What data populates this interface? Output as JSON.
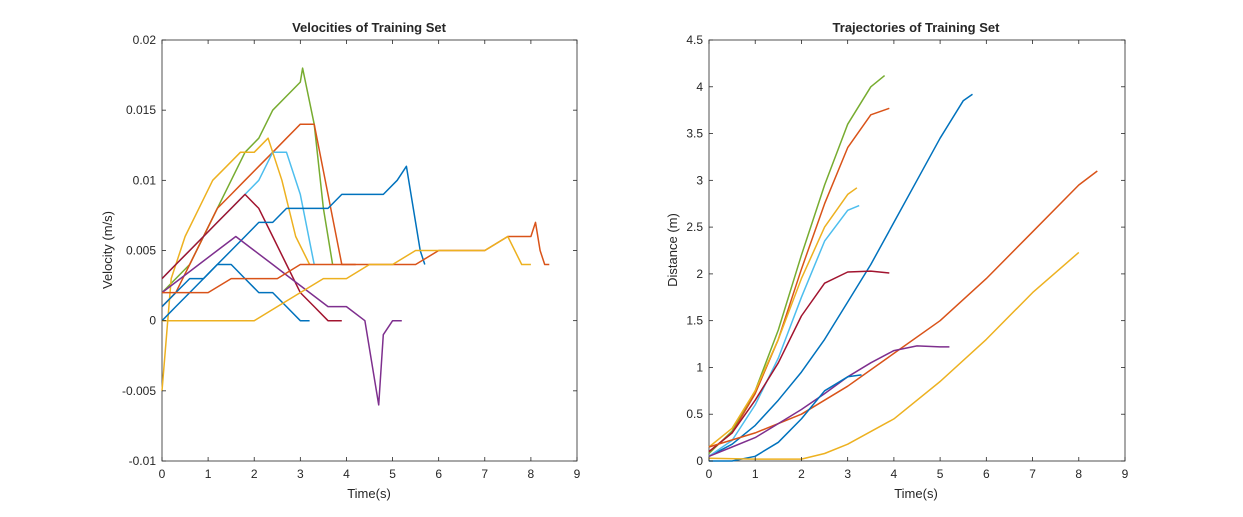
{
  "chart_data": [
    {
      "type": "line",
      "title": "Velocities of Training Set",
      "xlabel": "Time(s)",
      "ylabel": "Velocity (m/s)",
      "xlim": [
        0,
        9
      ],
      "ylim": [
        -0.01,
        0.02
      ],
      "xticks": [
        "0",
        "1",
        "2",
        "3",
        "4",
        "5",
        "6",
        "7",
        "8",
        "9"
      ],
      "yticks": [
        "-0.01",
        "-0.005",
        "0",
        "0.005",
        "0.01",
        "0.015",
        "0.02"
      ],
      "grid": false,
      "series": [
        {
          "color": "#77AC30",
          "x": [
            0,
            0.3,
            0.6,
            0.9,
            1.2,
            1.5,
            1.8,
            2.1,
            2.4,
            2.7,
            3.0,
            3.05,
            3.3,
            3.5,
            3.7
          ],
          "y": [
            0.002,
            0.003,
            0.004,
            0.006,
            0.008,
            0.01,
            0.012,
            0.013,
            0.015,
            0.016,
            0.017,
            0.018,
            0.014,
            0.008,
            0.004
          ]
        },
        {
          "color": "#D95319",
          "x": [
            0,
            0.3,
            0.6,
            0.9,
            1.2,
            1.5,
            1.8,
            2.1,
            2.4,
            2.7,
            3.0,
            3.3,
            3.6,
            3.9,
            4.2
          ],
          "y": [
            0.001,
            0.002,
            0.004,
            0.006,
            0.008,
            0.009,
            0.01,
            0.011,
            0.012,
            0.013,
            0.014,
            0.014,
            0.009,
            0.004,
            0.004
          ]
        },
        {
          "color": "#4DBEEE",
          "x": [
            0,
            0.3,
            0.6,
            0.9,
            1.2,
            1.5,
            1.8,
            2.1,
            2.4,
            2.7,
            3.0,
            3.3
          ],
          "y": [
            0.003,
            0.004,
            0.005,
            0.006,
            0.007,
            0.008,
            0.009,
            0.01,
            0.012,
            0.012,
            0.009,
            0.004
          ]
        },
        {
          "color": "#EDB120",
          "x": [
            0,
            0.2,
            0.5,
            0.8,
            1.1,
            1.4,
            1.7,
            2.0,
            2.3,
            2.6,
            2.9,
            3.2
          ],
          "y": [
            -0.005,
            0.003,
            0.006,
            0.008,
            0.01,
            0.011,
            0.012,
            0.012,
            0.013,
            0.01,
            0.006,
            0.004
          ]
        },
        {
          "color": "#A2142F",
          "x": [
            0,
            0.3,
            0.6,
            0.9,
            1.2,
            1.5,
            1.8,
            2.1,
            2.4,
            2.7,
            3.0,
            3.3,
            3.6,
            3.9
          ],
          "y": [
            0.003,
            0.004,
            0.005,
            0.006,
            0.007,
            0.008,
            0.009,
            0.008,
            0.006,
            0.004,
            0.002,
            0.001,
            0.0,
            0.0
          ]
        },
        {
          "color": "#0072BD",
          "x": [
            0,
            0.3,
            0.6,
            0.9,
            1.2,
            1.5,
            1.8,
            2.1,
            2.4,
            2.7,
            3.0,
            3.3,
            3.6,
            3.9,
            4.2,
            4.5,
            4.8,
            5.1,
            5.3,
            5.4,
            5.5,
            5.6,
            5.7
          ],
          "y": [
            0.0,
            0.001,
            0.002,
            0.003,
            0.004,
            0.005,
            0.006,
            0.007,
            0.007,
            0.008,
            0.008,
            0.008,
            0.008,
            0.009,
            0.009,
            0.009,
            0.009,
            0.01,
            0.011,
            0.009,
            0.007,
            0.005,
            0.004
          ]
        },
        {
          "color": "#0072BD",
          "x": [
            0,
            0.3,
            0.6,
            0.9,
            1.2,
            1.5,
            1.8,
            2.1,
            2.4,
            2.7,
            3.0,
            3.2
          ],
          "y": [
            0.001,
            0.002,
            0.003,
            0.003,
            0.004,
            0.004,
            0.003,
            0.002,
            0.002,
            0.001,
            0.0,
            0.0
          ]
        },
        {
          "color": "#7E2F8E",
          "x": [
            0,
            0.4,
            0.8,
            1.2,
            1.6,
            2.0,
            2.4,
            2.8,
            3.2,
            3.6,
            4.0,
            4.4,
            4.7,
            4.8,
            5.0,
            5.2
          ],
          "y": [
            0.002,
            0.003,
            0.004,
            0.005,
            0.006,
            0.005,
            0.004,
            0.003,
            0.002,
            0.001,
            0.001,
            0.0,
            -0.006,
            -0.001,
            0.0,
            0.0
          ]
        },
        {
          "color": "#D95319",
          "x": [
            0,
            0.5,
            1.0,
            1.5,
            2.0,
            2.5,
            3.0,
            3.5,
            4.0,
            4.5,
            5.0,
            5.5,
            6.0,
            6.5,
            7.0,
            7.5,
            8.0,
            8.1,
            8.2,
            8.3,
            8.4
          ],
          "y": [
            0.002,
            0.002,
            0.002,
            0.003,
            0.003,
            0.003,
            0.004,
            0.004,
            0.004,
            0.004,
            0.004,
            0.004,
            0.005,
            0.005,
            0.005,
            0.006,
            0.006,
            0.007,
            0.005,
            0.004,
            0.004
          ]
        },
        {
          "color": "#EDB120",
          "x": [
            0,
            0.5,
            1.0,
            1.5,
            2.0,
            2.5,
            3.0,
            3.5,
            4.0,
            4.5,
            5.0,
            5.5,
            6.0,
            6.5,
            7.0,
            7.5,
            7.8,
            8.0
          ],
          "y": [
            0.0,
            0.0,
            0.0,
            0.0,
            0.0,
            0.001,
            0.002,
            0.003,
            0.003,
            0.004,
            0.004,
            0.005,
            0.005,
            0.005,
            0.005,
            0.006,
            0.004,
            0.004
          ]
        }
      ]
    },
    {
      "type": "line",
      "title": "Trajectories of Training Set",
      "xlabel": "Time(s)",
      "ylabel": "Distance (m)",
      "xlim": [
        0,
        9
      ],
      "ylim": [
        0,
        4.5
      ],
      "xticks": [
        "0",
        "1",
        "2",
        "3",
        "4",
        "5",
        "6",
        "7",
        "8",
        "9"
      ],
      "yticks": [
        "0",
        "0.5",
        "1",
        "1.5",
        "2",
        "2.5",
        "3",
        "3.5",
        "4",
        "4.5"
      ],
      "grid": false,
      "series": [
        {
          "color": "#77AC30",
          "x": [
            0,
            0.5,
            1.0,
            1.5,
            2.0,
            2.5,
            3.0,
            3.5,
            3.8
          ],
          "y": [
            0.08,
            0.32,
            0.75,
            1.4,
            2.2,
            2.95,
            3.6,
            4.0,
            4.12
          ]
        },
        {
          "color": "#D95319",
          "x": [
            0,
            0.5,
            1.0,
            1.5,
            2.0,
            2.5,
            3.0,
            3.5,
            3.9
          ],
          "y": [
            0.1,
            0.3,
            0.72,
            1.3,
            2.05,
            2.75,
            3.35,
            3.7,
            3.77
          ]
        },
        {
          "color": "#0072BD",
          "x": [
            0,
            0.5,
            1.0,
            1.5,
            2.0,
            2.5,
            3.0,
            3.5,
            4.0,
            4.5,
            5.0,
            5.5,
            5.7
          ],
          "y": [
            0.05,
            0.18,
            0.38,
            0.65,
            0.95,
            1.3,
            1.7,
            2.1,
            2.55,
            3.0,
            3.45,
            3.85,
            3.92
          ]
        },
        {
          "color": "#EDB120",
          "x": [
            0,
            0.5,
            1.0,
            1.5,
            2.0,
            2.5,
            3.0,
            3.2
          ],
          "y": [
            0.15,
            0.35,
            0.75,
            1.3,
            1.95,
            2.5,
            2.85,
            2.92
          ]
        },
        {
          "color": "#4DBEEE",
          "x": [
            0,
            0.5,
            1.0,
            1.5,
            2.0,
            2.5,
            3.0,
            3.25
          ],
          "y": [
            0.05,
            0.22,
            0.6,
            1.1,
            1.75,
            2.35,
            2.68,
            2.73
          ]
        },
        {
          "color": "#A2142F",
          "x": [
            0,
            0.5,
            1.0,
            1.5,
            2.0,
            2.5,
            3.0,
            3.5,
            3.9
          ],
          "y": [
            0.1,
            0.3,
            0.65,
            1.05,
            1.55,
            1.9,
            2.02,
            2.03,
            2.01
          ]
        },
        {
          "color": "#D95319",
          "x": [
            0,
            1.0,
            2.0,
            3.0,
            4.0,
            5.0,
            6.0,
            7.0,
            8.0,
            8.4
          ],
          "y": [
            0.15,
            0.3,
            0.5,
            0.8,
            1.15,
            1.5,
            1.95,
            2.45,
            2.95,
            3.1
          ]
        },
        {
          "color": "#7E2F8E",
          "x": [
            0,
            0.5,
            1.0,
            1.5,
            2.0,
            2.5,
            3.0,
            3.5,
            4.0,
            4.5,
            5.0,
            5.2
          ],
          "y": [
            0.05,
            0.15,
            0.25,
            0.4,
            0.55,
            0.72,
            0.9,
            1.05,
            1.18,
            1.23,
            1.22,
            1.22
          ]
        },
        {
          "color": "#0072BD",
          "x": [
            0,
            0.5,
            1.0,
            1.5,
            2.0,
            2.5,
            3.0,
            3.3
          ],
          "y": [
            0.0,
            0.0,
            0.05,
            0.2,
            0.45,
            0.75,
            0.9,
            0.92
          ]
        },
        {
          "color": "#EDB120",
          "x": [
            0,
            1.0,
            2.0,
            2.5,
            3.0,
            4.0,
            5.0,
            6.0,
            7.0,
            8.0
          ],
          "y": [
            0.03,
            0.02,
            0.02,
            0.08,
            0.18,
            0.45,
            0.85,
            1.3,
            1.8,
            2.23
          ]
        }
      ]
    }
  ]
}
